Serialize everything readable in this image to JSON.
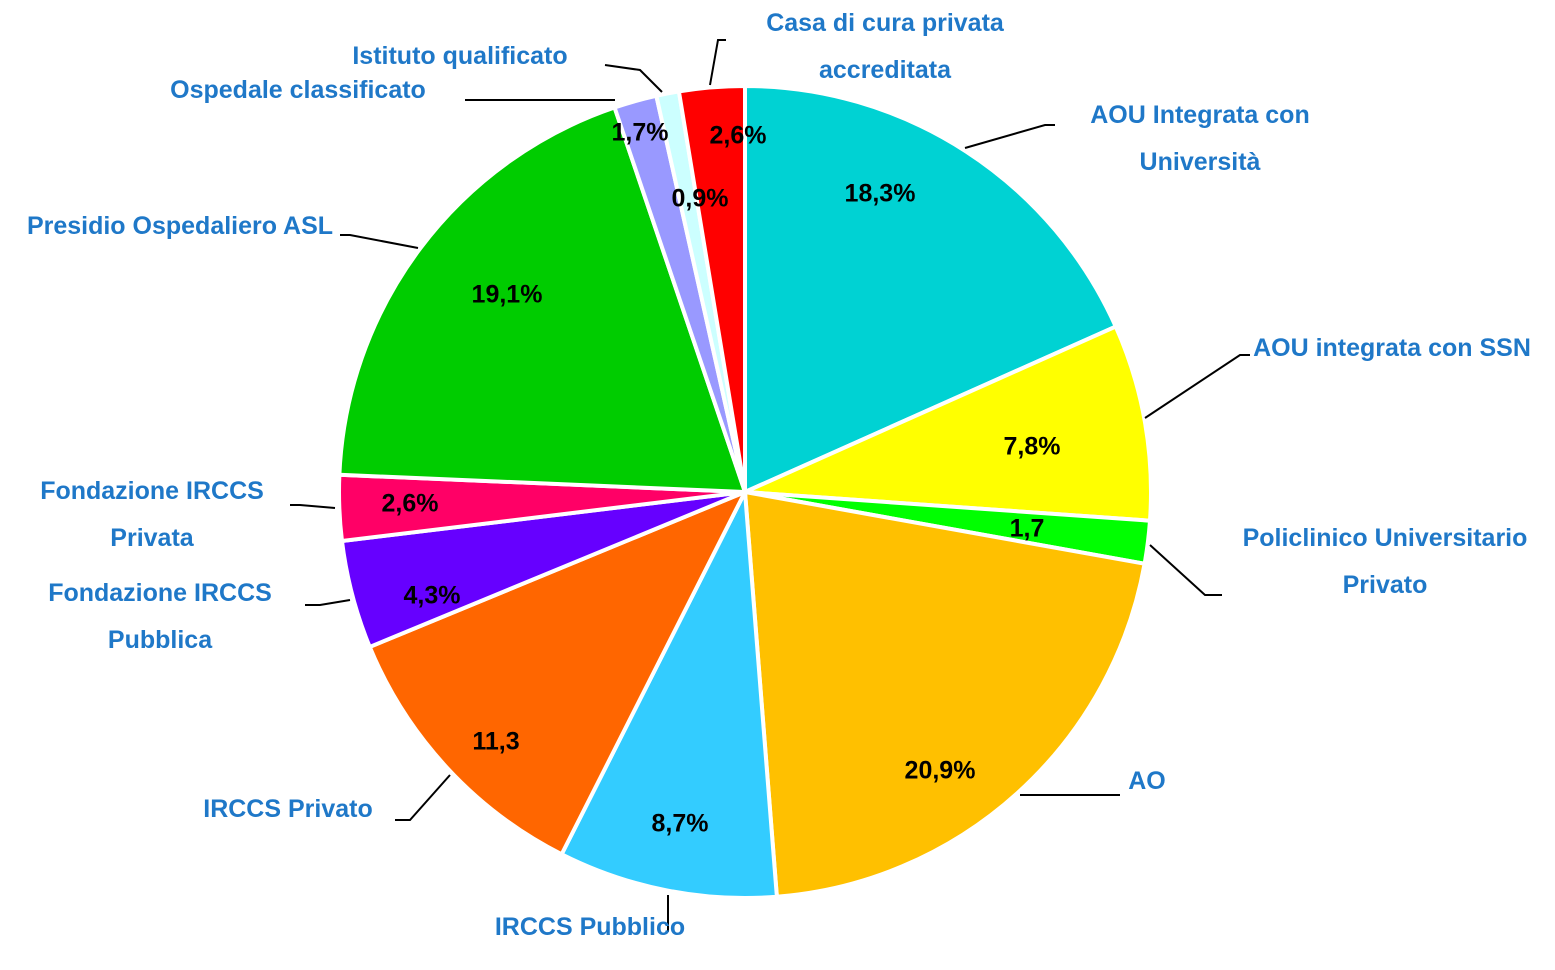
{
  "chart_data": {
    "type": "pie",
    "categories": [
      "AOU Integrata con Università",
      "AOU integrata con SSN",
      "Policlinico Universitario Privato",
      "AO",
      "IRCCS Pubblico",
      "IRCCS Privato",
      "Fondazione IRCCS Pubblica",
      "Fondazione IRCCS Privata",
      "Presidio Ospedaliero ASL",
      "Ospedale classificato",
      "Istituto qualificato",
      "Casa di cura privata accreditata"
    ],
    "values": [
      18.3,
      7.8,
      1.7,
      20.9,
      8.7,
      11.3,
      4.3,
      2.6,
      19.1,
      1.7,
      0.9,
      2.6
    ],
    "value_labels": [
      "18,3%",
      "7,8%",
      "1,7",
      "20,9%",
      "8,7%",
      "11,3",
      "4,3%",
      "2,6%",
      "19,1%",
      "1,7%",
      "0,9%",
      "2,6%"
    ],
    "colors": [
      "#00D2D3",
      "#FFFF00",
      "#00FF00",
      "#FFC000",
      "#33CCFF",
      "#FF6600",
      "#6600FF",
      "#FF0066",
      "#00CC00",
      "#9999FF",
      "#CCFFFF",
      "#FF0000"
    ]
  }
}
